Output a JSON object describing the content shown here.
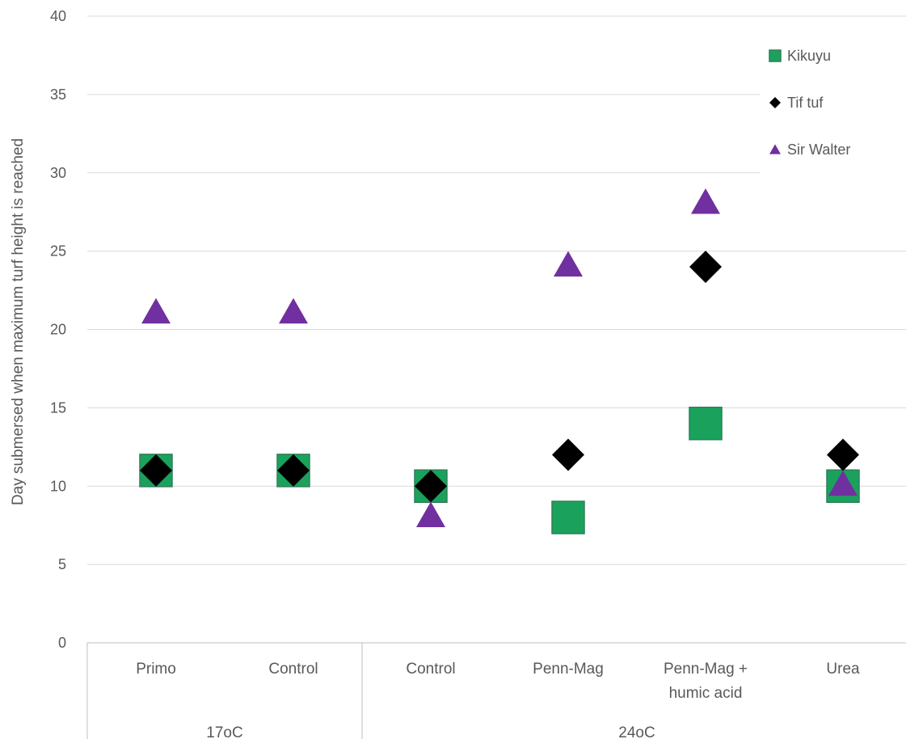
{
  "chart_data": {
    "type": "scatter",
    "title": "",
    "ylabel": "Day submersed when maximum turf height is reached",
    "xlabel": "",
    "ylim": [
      0,
      40
    ],
    "yticks": [
      0,
      5,
      10,
      15,
      20,
      25,
      30,
      35,
      40
    ],
    "grid": true,
    "legend_position": "top-right",
    "categories": [
      {
        "label": "Primo",
        "group": "17oC"
      },
      {
        "label": "Control",
        "group": "17oC"
      },
      {
        "label": "Control",
        "group": "24oC"
      },
      {
        "label": "Penn-Mag",
        "group": "24oC"
      },
      {
        "label": "Penn-Mag + humic acid",
        "group": "24oC"
      },
      {
        "label": "Urea",
        "group": "24oC"
      }
    ],
    "category_lines": [
      [
        "Primo"
      ],
      [
        "Control"
      ],
      [
        "Control"
      ],
      [
        "Penn-Mag"
      ],
      [
        "Penn-Mag +",
        "humic acid"
      ],
      [
        "Urea"
      ]
    ],
    "groups": [
      {
        "label": "17oC",
        "count": 2
      },
      {
        "label": "24oC",
        "count": 4
      }
    ],
    "series": [
      {
        "name": "Kikuyu",
        "marker": "square",
        "color": "#1aa25d",
        "values": [
          11,
          11,
          10,
          8,
          14,
          10
        ]
      },
      {
        "name": "Tif tuf",
        "marker": "diamond",
        "color": "#000000",
        "values": [
          11,
          11,
          10,
          12,
          24,
          12
        ]
      },
      {
        "name": "Sir Walter",
        "marker": "triangle",
        "color": "#7030a0",
        "values": [
          21,
          21,
          8,
          24,
          28,
          10
        ]
      }
    ]
  }
}
